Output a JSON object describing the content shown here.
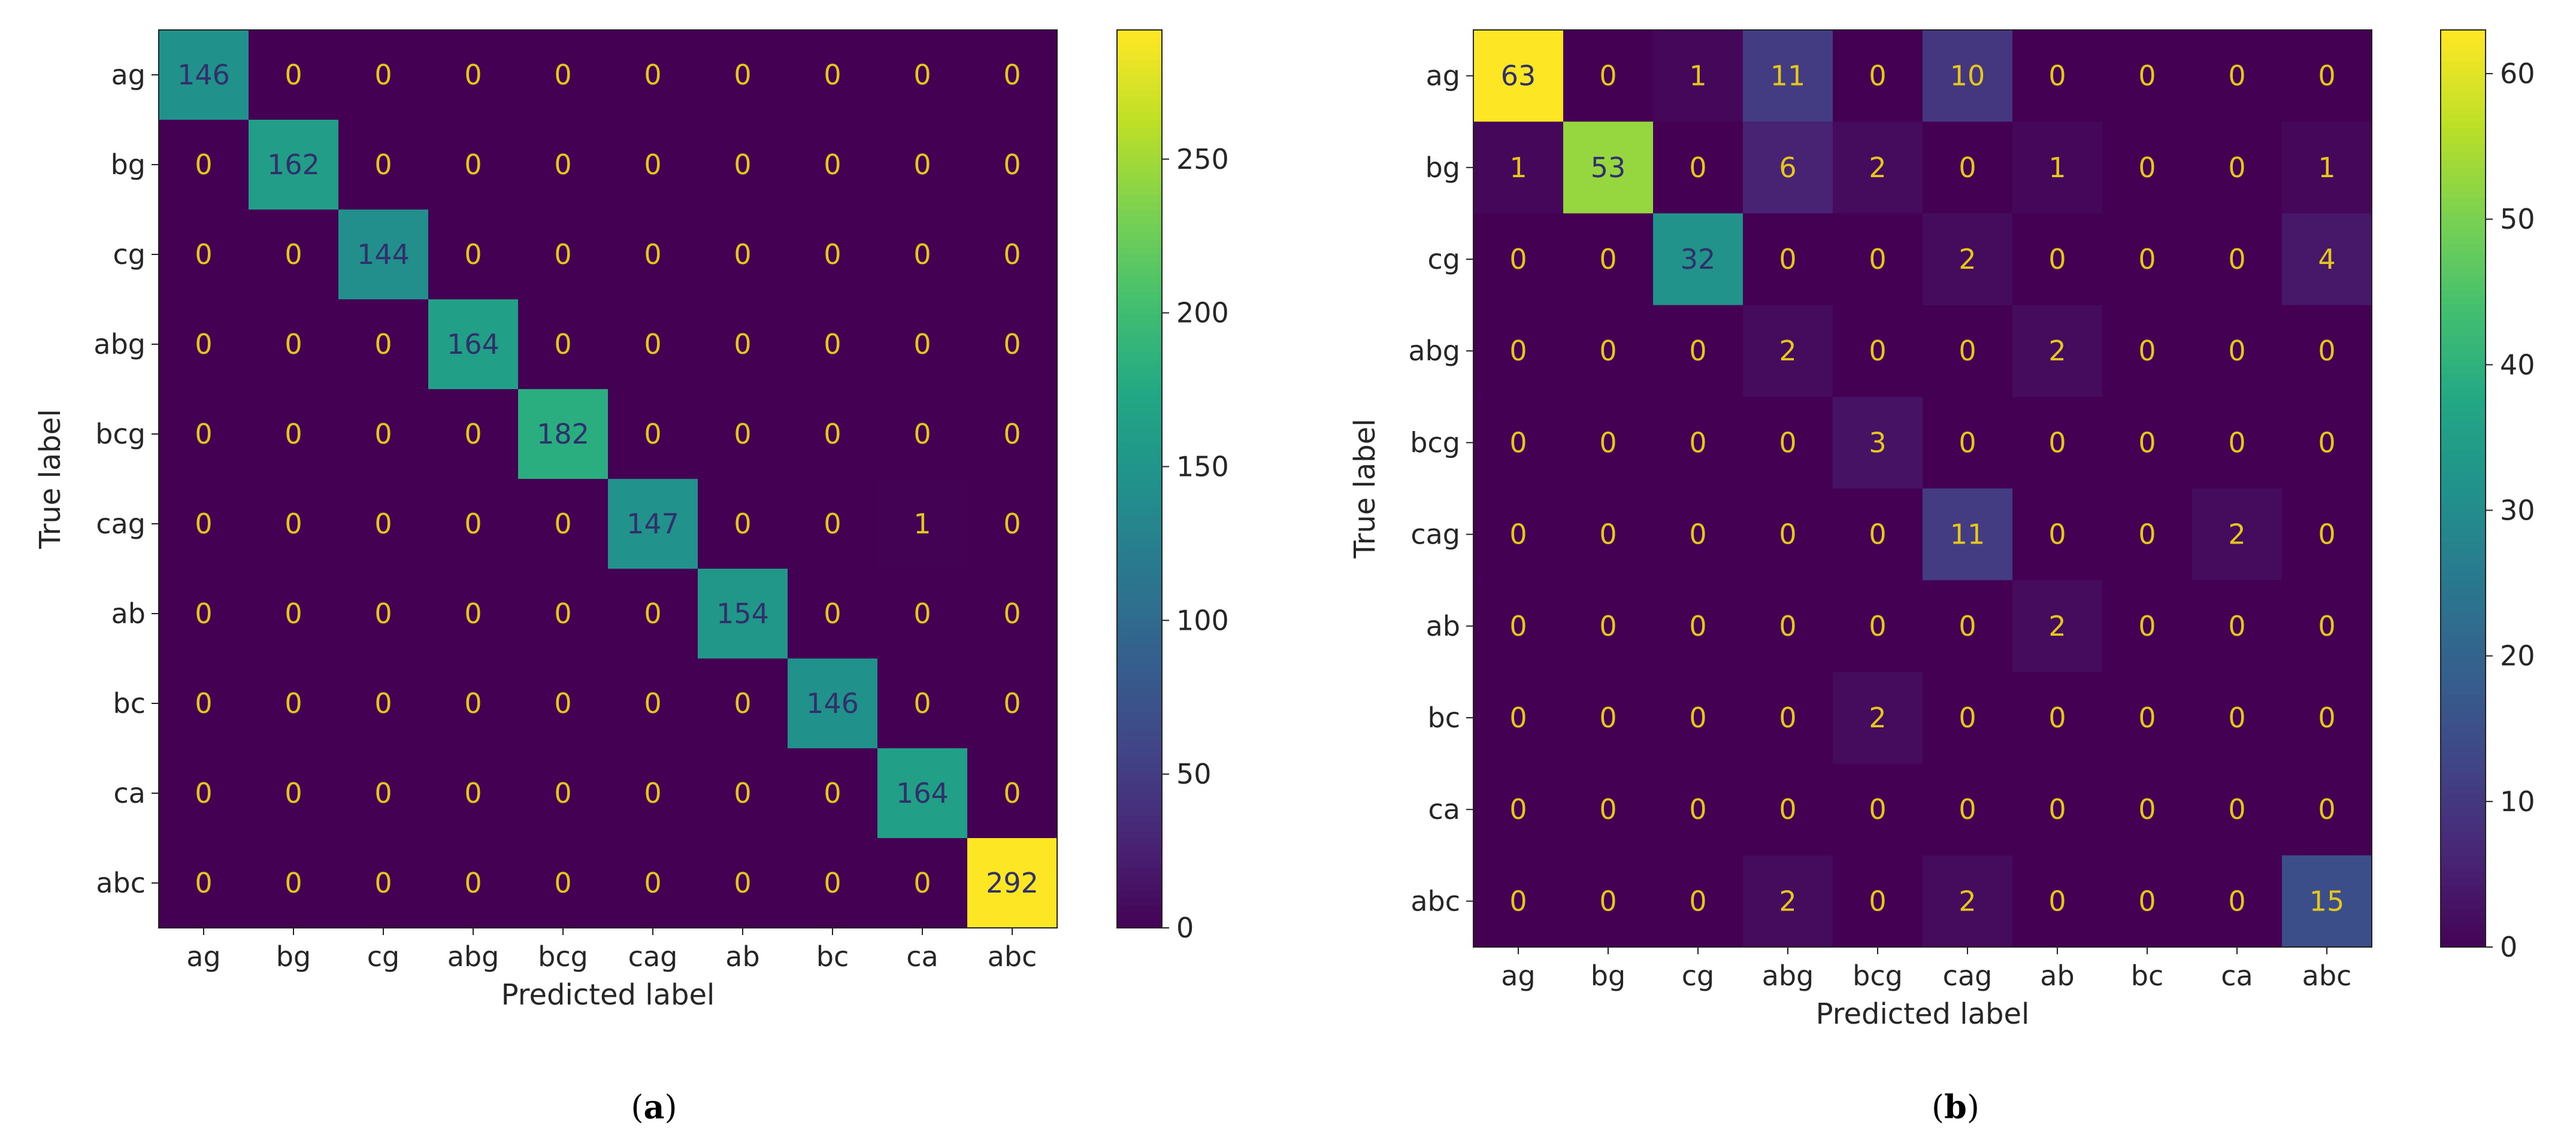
{
  "chart_data": [
    {
      "type": "heatmap",
      "panel": "a",
      "caption_letter": "a",
      "xlabel": "Predicted label",
      "ylabel": "True label",
      "categories": [
        "ag",
        "bg",
        "cg",
        "abg",
        "bcg",
        "cag",
        "ab",
        "bc",
        "ca",
        "abc"
      ],
      "matrix": [
        [
          146,
          0,
          0,
          0,
          0,
          0,
          0,
          0,
          0,
          0
        ],
        [
          0,
          162,
          0,
          0,
          0,
          0,
          0,
          0,
          0,
          0
        ],
        [
          0,
          0,
          144,
          0,
          0,
          0,
          0,
          0,
          0,
          0
        ],
        [
          0,
          0,
          0,
          164,
          0,
          0,
          0,
          0,
          0,
          0
        ],
        [
          0,
          0,
          0,
          0,
          182,
          0,
          0,
          0,
          0,
          0
        ],
        [
          0,
          0,
          0,
          0,
          0,
          147,
          0,
          0,
          1,
          0
        ],
        [
          0,
          0,
          0,
          0,
          0,
          0,
          154,
          0,
          0,
          0
        ],
        [
          0,
          0,
          0,
          0,
          0,
          0,
          0,
          146,
          0,
          0
        ],
        [
          0,
          0,
          0,
          0,
          0,
          0,
          0,
          0,
          164,
          0
        ],
        [
          0,
          0,
          0,
          0,
          0,
          0,
          0,
          0,
          0,
          292
        ]
      ],
      "colormap": "viridis",
      "vmin": 0,
      "vmax": 292,
      "colorbar_ticks": [
        0,
        50,
        100,
        150,
        200,
        250
      ]
    },
    {
      "type": "heatmap",
      "panel": "b",
      "caption_letter": "b",
      "xlabel": "Predicted label",
      "ylabel": "True label",
      "categories": [
        "ag",
        "bg",
        "cg",
        "abg",
        "bcg",
        "cag",
        "ab",
        "bc",
        "ca",
        "abc"
      ],
      "matrix": [
        [
          63,
          0,
          1,
          11,
          0,
          10,
          0,
          0,
          0,
          0
        ],
        [
          1,
          53,
          0,
          6,
          2,
          0,
          1,
          0,
          0,
          1
        ],
        [
          0,
          0,
          32,
          0,
          0,
          2,
          0,
          0,
          0,
          4
        ],
        [
          0,
          0,
          0,
          2,
          0,
          0,
          2,
          0,
          0,
          0
        ],
        [
          0,
          0,
          0,
          0,
          3,
          0,
          0,
          0,
          0,
          0
        ],
        [
          0,
          0,
          0,
          0,
          0,
          11,
          0,
          0,
          2,
          0
        ],
        [
          0,
          0,
          0,
          0,
          0,
          0,
          2,
          0,
          0,
          0
        ],
        [
          0,
          0,
          0,
          0,
          2,
          0,
          0,
          0,
          0,
          0
        ],
        [
          0,
          0,
          0,
          0,
          0,
          0,
          0,
          0,
          0,
          0
        ],
        [
          0,
          0,
          0,
          2,
          0,
          2,
          0,
          0,
          0,
          15
        ]
      ],
      "colormap": "viridis",
      "vmin": 0,
      "vmax": 63,
      "colorbar_ticks": [
        0,
        10,
        20,
        30,
        40,
        50,
        60
      ]
    }
  ]
}
